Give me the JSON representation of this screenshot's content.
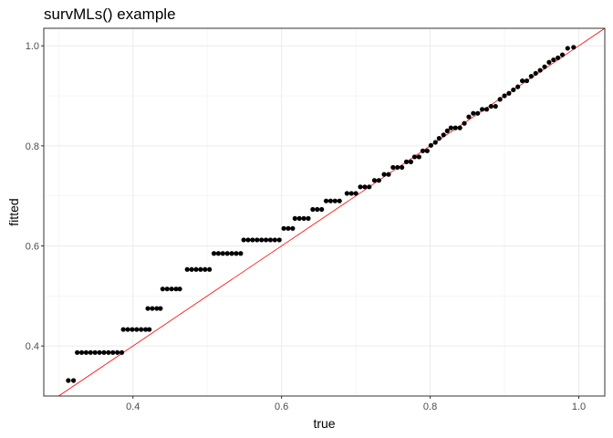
{
  "chart_data": {
    "type": "scatter",
    "title": "survMLs() example",
    "xlabel": "true",
    "ylabel": "fitted",
    "xlim": [
      0.28,
      1.035
    ],
    "ylim": [
      0.3,
      1.035
    ],
    "x_ticks": [
      0.4,
      0.6,
      0.8,
      1.0
    ],
    "x_tick_labels": [
      "0.4",
      "0.6",
      "0.8",
      "1.0"
    ],
    "y_ticks": [
      0.4,
      0.6,
      0.8,
      1.0
    ],
    "y_tick_labels": [
      "0.4",
      "0.6",
      "0.8",
      "1.0"
    ],
    "grid": true,
    "point_color": "#000000",
    "reference_line": {
      "slope": 1,
      "intercept": 0,
      "color": "#ff0000"
    },
    "series": [
      {
        "points": [
          [
            0.313,
            0.331
          ],
          [
            0.32,
            0.331
          ],
          [
            0.325,
            0.387
          ],
          [
            0.331,
            0.387
          ],
          [
            0.337,
            0.387
          ],
          [
            0.343,
            0.387
          ],
          [
            0.349,
            0.387
          ],
          [
            0.355,
            0.387
          ],
          [
            0.361,
            0.387
          ],
          [
            0.367,
            0.387
          ],
          [
            0.373,
            0.387
          ],
          [
            0.379,
            0.387
          ],
          [
            0.385,
            0.387
          ],
          [
            0.387,
            0.433
          ],
          [
            0.393,
            0.433
          ],
          [
            0.399,
            0.433
          ],
          [
            0.405,
            0.433
          ],
          [
            0.411,
            0.433
          ],
          [
            0.417,
            0.433
          ],
          [
            0.422,
            0.433
          ],
          [
            0.42,
            0.475
          ],
          [
            0.426,
            0.475
          ],
          [
            0.432,
            0.475
          ],
          [
            0.437,
            0.475
          ],
          [
            0.44,
            0.514
          ],
          [
            0.446,
            0.514
          ],
          [
            0.452,
            0.514
          ],
          [
            0.458,
            0.514
          ],
          [
            0.463,
            0.514
          ],
          [
            0.473,
            0.553
          ],
          [
            0.479,
            0.553
          ],
          [
            0.485,
            0.553
          ],
          [
            0.491,
            0.553
          ],
          [
            0.497,
            0.553
          ],
          [
            0.503,
            0.553
          ],
          [
            0.509,
            0.585
          ],
          [
            0.515,
            0.585
          ],
          [
            0.521,
            0.585
          ],
          [
            0.527,
            0.585
          ],
          [
            0.533,
            0.585
          ],
          [
            0.539,
            0.585
          ],
          [
            0.545,
            0.585
          ],
          [
            0.549,
            0.612
          ],
          [
            0.555,
            0.612
          ],
          [
            0.561,
            0.612
          ],
          [
            0.567,
            0.612
          ],
          [
            0.573,
            0.612
          ],
          [
            0.579,
            0.612
          ],
          [
            0.585,
            0.612
          ],
          [
            0.591,
            0.612
          ],
          [
            0.597,
            0.612
          ],
          [
            0.603,
            0.635
          ],
          [
            0.609,
            0.635
          ],
          [
            0.615,
            0.635
          ],
          [
            0.618,
            0.655
          ],
          [
            0.624,
            0.655
          ],
          [
            0.63,
            0.655
          ],
          [
            0.636,
            0.655
          ],
          [
            0.642,
            0.673
          ],
          [
            0.648,
            0.673
          ],
          [
            0.654,
            0.673
          ],
          [
            0.66,
            0.69
          ],
          [
            0.666,
            0.69
          ],
          [
            0.672,
            0.69
          ],
          [
            0.678,
            0.69
          ],
          [
            0.688,
            0.705
          ],
          [
            0.694,
            0.705
          ],
          [
            0.7,
            0.705
          ],
          [
            0.706,
            0.718
          ],
          [
            0.712,
            0.718
          ],
          [
            0.718,
            0.718
          ],
          [
            0.725,
            0.731
          ],
          [
            0.731,
            0.731
          ],
          [
            0.738,
            0.743
          ],
          [
            0.744,
            0.743
          ],
          [
            0.75,
            0.757
          ],
          [
            0.756,
            0.757
          ],
          [
            0.762,
            0.757
          ],
          [
            0.768,
            0.768
          ],
          [
            0.774,
            0.768
          ],
          [
            0.779,
            0.778
          ],
          [
            0.785,
            0.778
          ],
          [
            0.79,
            0.79
          ],
          [
            0.796,
            0.79
          ],
          [
            0.801,
            0.801
          ],
          [
            0.807,
            0.807
          ],
          [
            0.812,
            0.815
          ],
          [
            0.818,
            0.822
          ],
          [
            0.823,
            0.83
          ],
          [
            0.828,
            0.836
          ],
          [
            0.834,
            0.836
          ],
          [
            0.84,
            0.836
          ],
          [
            0.846,
            0.845
          ],
          [
            0.852,
            0.858
          ],
          [
            0.858,
            0.865
          ],
          [
            0.864,
            0.865
          ],
          [
            0.87,
            0.873
          ],
          [
            0.876,
            0.873
          ],
          [
            0.882,
            0.879
          ],
          [
            0.888,
            0.879
          ],
          [
            0.894,
            0.893
          ],
          [
            0.9,
            0.9
          ],
          [
            0.906,
            0.905
          ],
          [
            0.912,
            0.912
          ],
          [
            0.918,
            0.918
          ],
          [
            0.924,
            0.93
          ],
          [
            0.93,
            0.93
          ],
          [
            0.936,
            0.939
          ],
          [
            0.942,
            0.945
          ],
          [
            0.948,
            0.951
          ],
          [
            0.954,
            0.958
          ],
          [
            0.96,
            0.967
          ],
          [
            0.966,
            0.972
          ],
          [
            0.972,
            0.976
          ],
          [
            0.978,
            0.982
          ],
          [
            0.985,
            0.995
          ],
          [
            0.993,
            0.997
          ]
        ]
      }
    ]
  }
}
